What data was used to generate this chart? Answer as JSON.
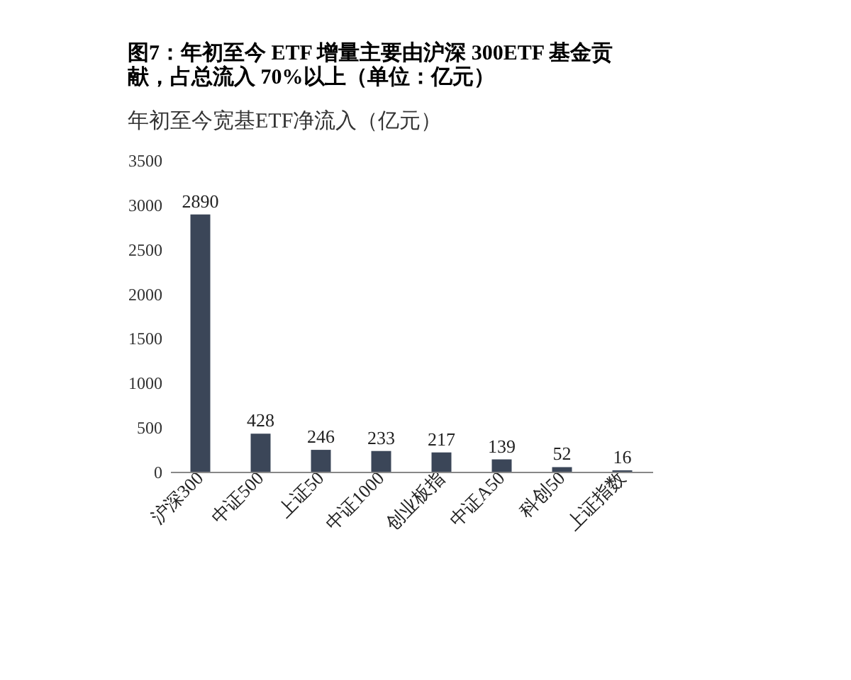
{
  "chart_data": {
    "type": "bar",
    "title": "图7：年初至今 ETF 增量主要由沪深 300ETF 基金贡献，占总流入 70%以上（单位：亿元）",
    "subtitle": "年初至今宽基ETF净流入（亿元）",
    "categories": [
      "沪深300",
      "中证500",
      "上证50",
      "中证1000",
      "创业板指",
      "中证A50",
      "科创50",
      "上证指数"
    ],
    "values": [
      2890,
      428,
      246,
      233,
      217,
      139,
      52,
      16
    ],
    "color": "#3b4658",
    "ylim": [
      0,
      3500
    ],
    "yticks": [
      0,
      500,
      1000,
      1500,
      2000,
      2500,
      3000,
      3500
    ],
    "grid": false,
    "data_labels": true
  }
}
